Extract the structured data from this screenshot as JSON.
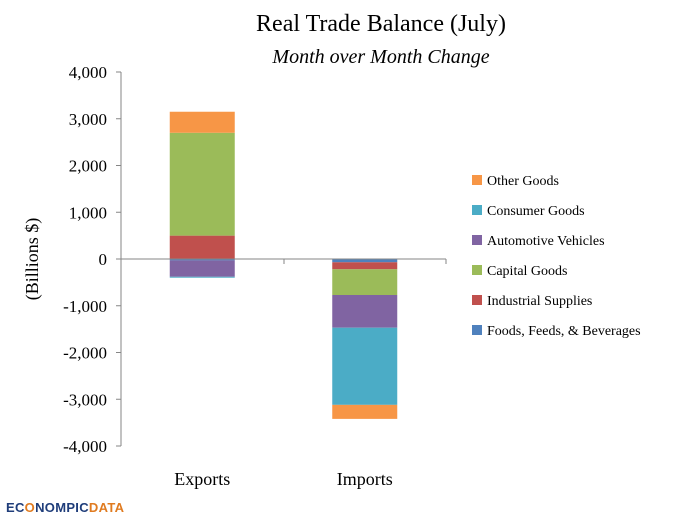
{
  "chart_data": {
    "type": "bar",
    "stacked": true,
    "title": "Real Trade Balance (July)",
    "subtitle": "Month over Month Change",
    "ylabel": "(Billions $)",
    "ylim": [
      -4000,
      4000
    ],
    "ytick_values": [
      4000,
      3000,
      2000,
      1000,
      0,
      -1000,
      -2000,
      -3000,
      -4000
    ],
    "ytick_labels": [
      "4,000",
      "3,000",
      "2,000",
      "1,000",
      "0",
      "-1,000",
      "-2,000",
      "-3,000",
      "-4,000"
    ],
    "categories": [
      "Exports",
      "Imports"
    ],
    "series": [
      {
        "name": "Foods, Feeds, & Beverages",
        "color": "#4f81bd",
        "values": [
          -30,
          -70
        ]
      },
      {
        "name": "Industrial Supplies",
        "color": "#c0504d",
        "values": [
          500,
          -150
        ]
      },
      {
        "name": "Capital Goods",
        "color": "#9bbb59",
        "values": [
          2200,
          -550
        ]
      },
      {
        "name": "Automotive Vehicles",
        "color": "#8064a2",
        "values": [
          -350,
          -700
        ]
      },
      {
        "name": "Consumer Goods",
        "color": "#4bacc6",
        "values": [
          -20,
          -1650
        ]
      },
      {
        "name": "Other Goods",
        "color": "#f79646",
        "values": [
          450,
          -300
        ]
      }
    ],
    "legend_order": [
      "Other Goods",
      "Consumer Goods",
      "Automotive Vehicles",
      "Capital Goods",
      "Industrial Supplies",
      "Foods, Feeds, & Beverages"
    ],
    "legend_position": "right",
    "grid": false
  },
  "branding": {
    "logo_part1": "EC",
    "logo_globe": "O",
    "logo_part2": "NOMPIC",
    "logo_part3": "DATA"
  }
}
